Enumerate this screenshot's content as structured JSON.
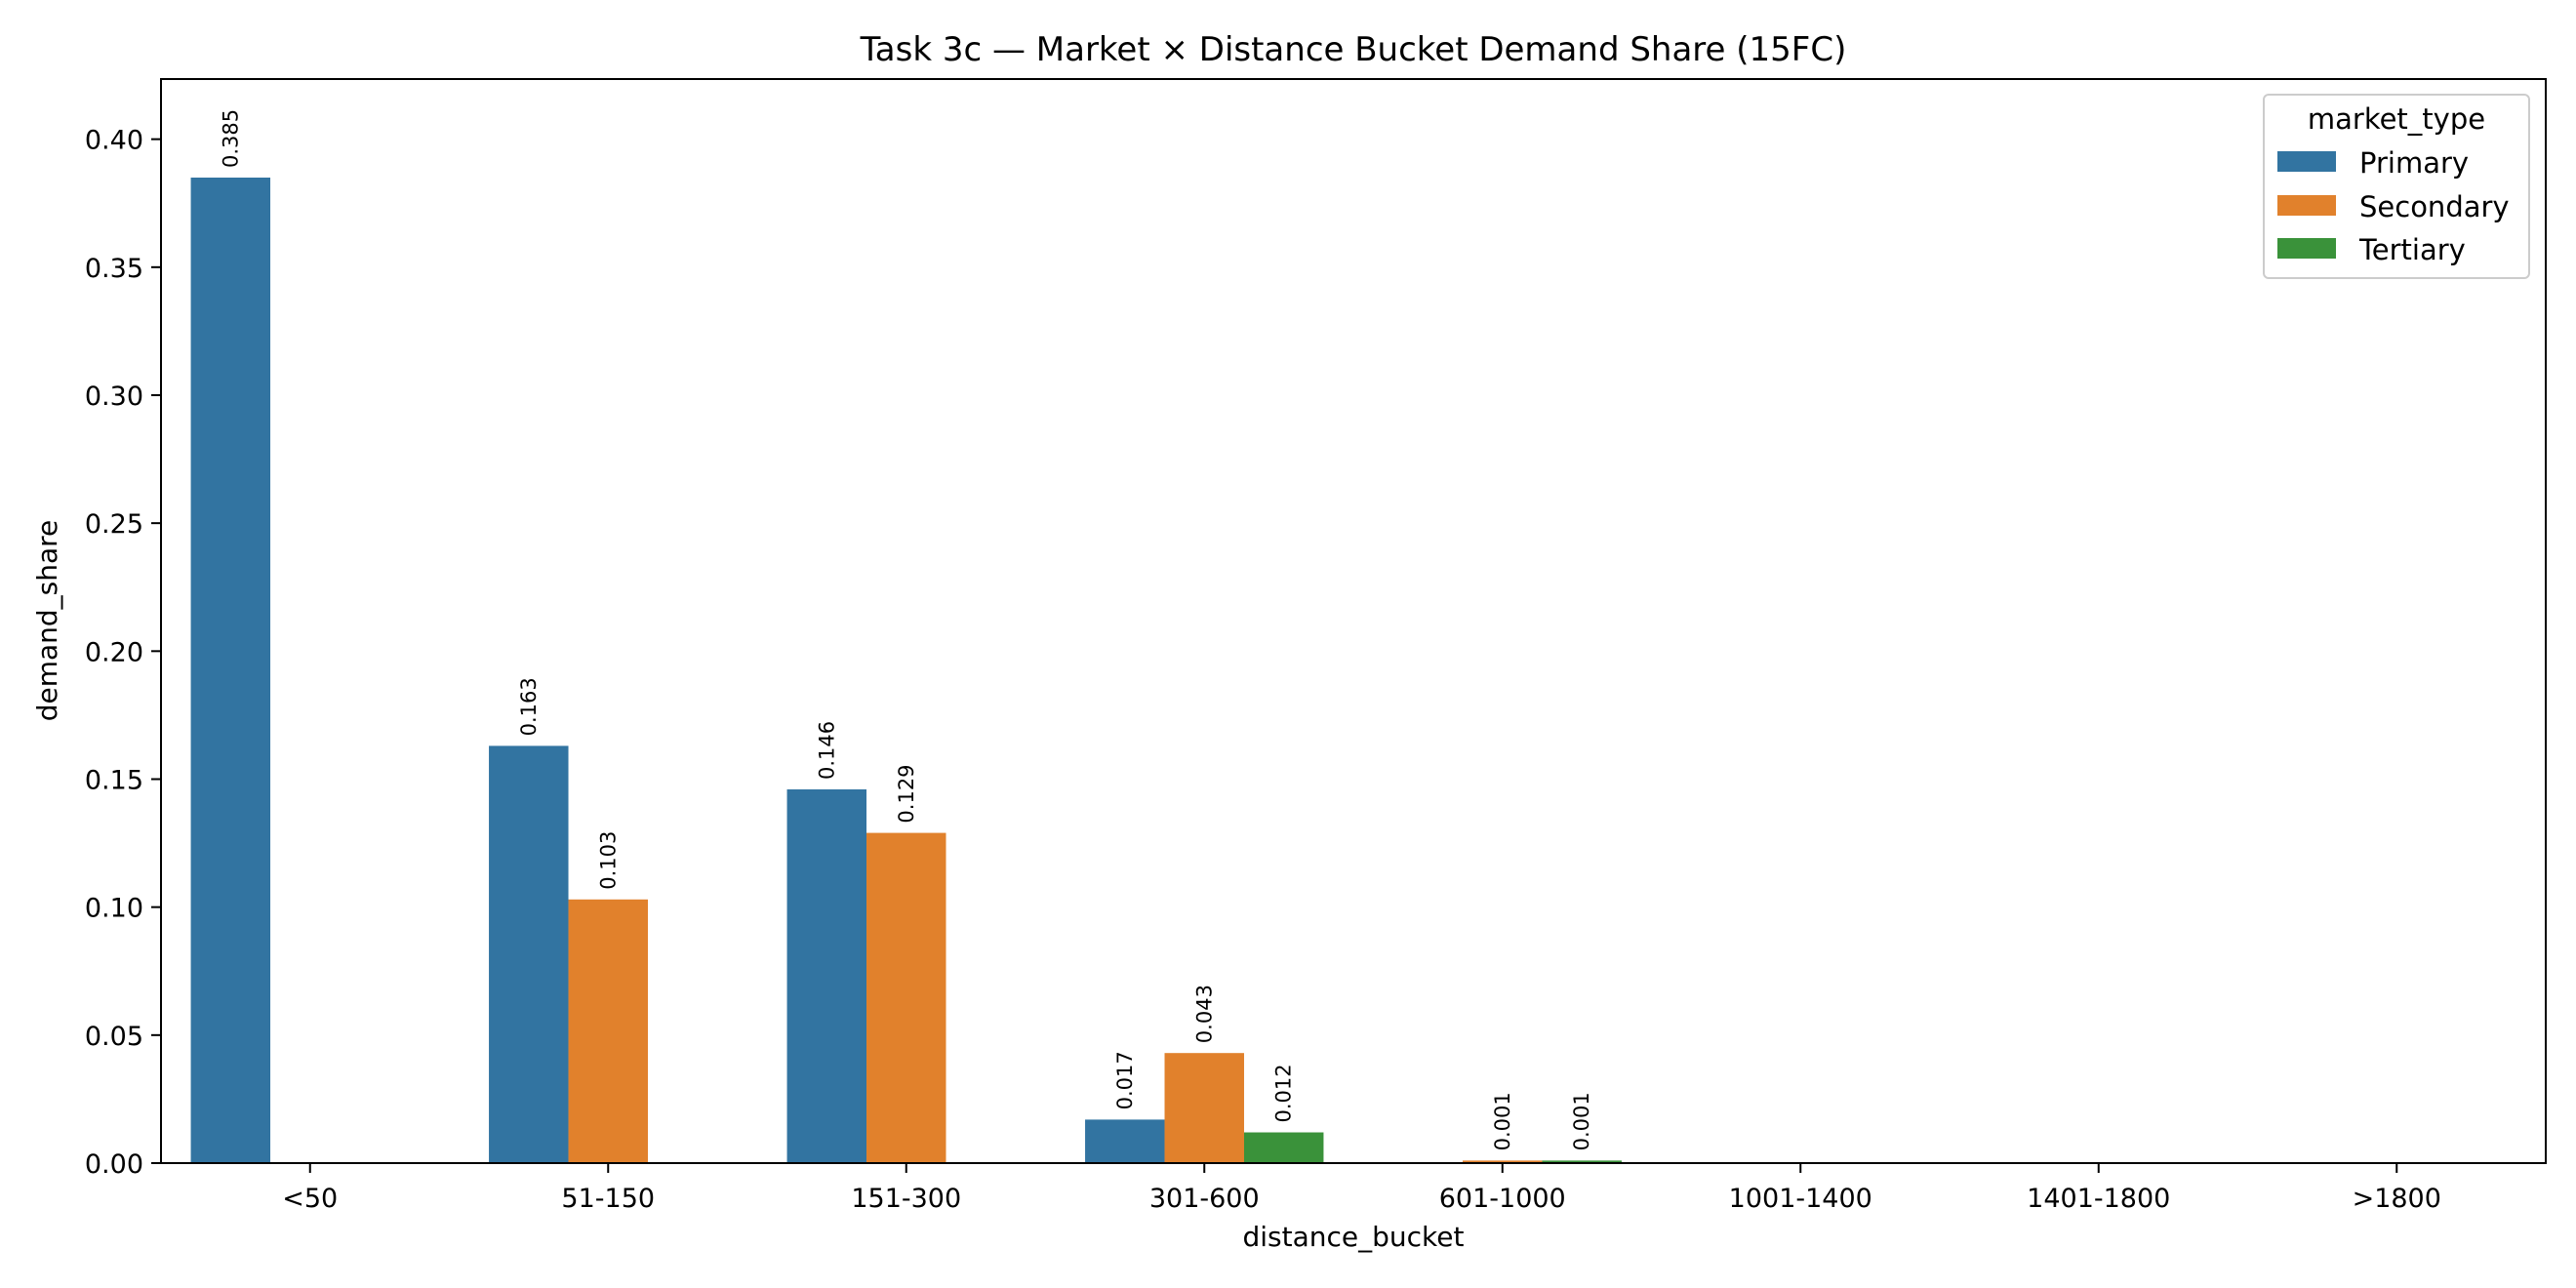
{
  "chart_data": {
    "type": "bar",
    "title": "Task 3c — Market × Distance Bucket Demand Share (15FC)",
    "xlabel": "distance_bucket",
    "ylabel": "demand_share",
    "categories": [
      "<50",
      "51-150",
      "151-300",
      "301-600",
      "601-1000",
      "1001-1400",
      "1401-1800",
      ">1800"
    ],
    "ylim": [
      0,
      0.4235
    ],
    "yticks": [
      0.0,
      0.05,
      0.1,
      0.15,
      0.2,
      0.25,
      0.3,
      0.35,
      0.4
    ],
    "ytick_labels": [
      "0.00",
      "0.05",
      "0.10",
      "0.15",
      "0.20",
      "0.25",
      "0.30",
      "0.35",
      "0.40"
    ],
    "grid": false,
    "legend": {
      "title": "market_type",
      "placement": "top-right"
    },
    "series": [
      {
        "name": "Primary",
        "color": "#3274a1",
        "values": [
          0.385,
          0.163,
          0.146,
          0.017,
          0,
          0,
          0,
          0
        ],
        "labels": [
          "0.385",
          "0.163",
          "0.146",
          "0.017",
          "",
          "",
          "",
          ""
        ]
      },
      {
        "name": "Secondary",
        "color": "#e1812c",
        "values": [
          0,
          0.103,
          0.129,
          0.043,
          0.001,
          0,
          0,
          0
        ],
        "labels": [
          "",
          "0.103",
          "0.129",
          "0.043",
          "0.001",
          "",
          "",
          ""
        ]
      },
      {
        "name": "Tertiary",
        "color": "#3a923a",
        "values": [
          0,
          0,
          0,
          0.012,
          0.001,
          0,
          0,
          0
        ],
        "labels": [
          "",
          "",
          "",
          "0.012",
          "0.001",
          "",
          "",
          ""
        ]
      }
    ]
  }
}
